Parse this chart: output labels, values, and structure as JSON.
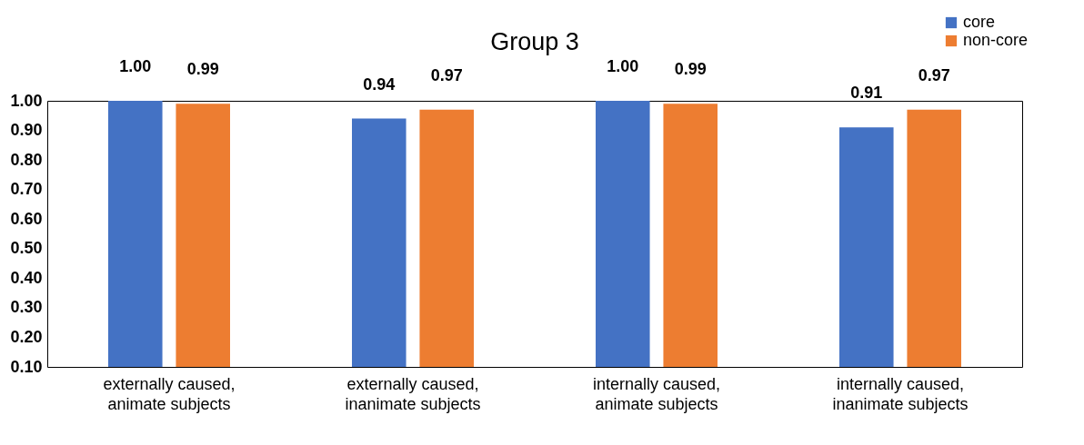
{
  "chart_data": {
    "type": "bar",
    "title": "Group 3",
    "categories": [
      "externally caused,\nanimate subjects",
      "externally caused,\ninanimate subjects",
      "internally caused,\nanimate subjects",
      "internally caused,\ninanimate subjects"
    ],
    "series": [
      {
        "name": "core",
        "color": "#4472c4",
        "values": [
          1.0,
          0.94,
          1.0,
          0.91
        ],
        "value_labels": [
          "1.00",
          "0.94",
          "1.00",
          "0.91"
        ]
      },
      {
        "name": "non-core",
        "color": "#ed7d31",
        "values": [
          0.99,
          0.97,
          0.99,
          0.97
        ],
        "value_labels": [
          "0.99",
          "0.97",
          "0.99",
          "0.97"
        ]
      }
    ],
    "ylim": [
      0.1,
      1.0
    ],
    "yticks": [
      {
        "value": 0.1,
        "label": "0.10"
      },
      {
        "value": 0.2,
        "label": "0.20"
      },
      {
        "value": 0.3,
        "label": "0.30"
      },
      {
        "value": 0.4,
        "label": "0.40"
      },
      {
        "value": 0.5,
        "label": "0.50"
      },
      {
        "value": 0.6,
        "label": "0.60"
      },
      {
        "value": 0.7,
        "label": "0.70"
      },
      {
        "value": 0.8,
        "label": "0.80"
      },
      {
        "value": 0.9,
        "label": "0.90"
      },
      {
        "value": 1.0,
        "label": "1.00"
      }
    ],
    "legend": "top right"
  }
}
